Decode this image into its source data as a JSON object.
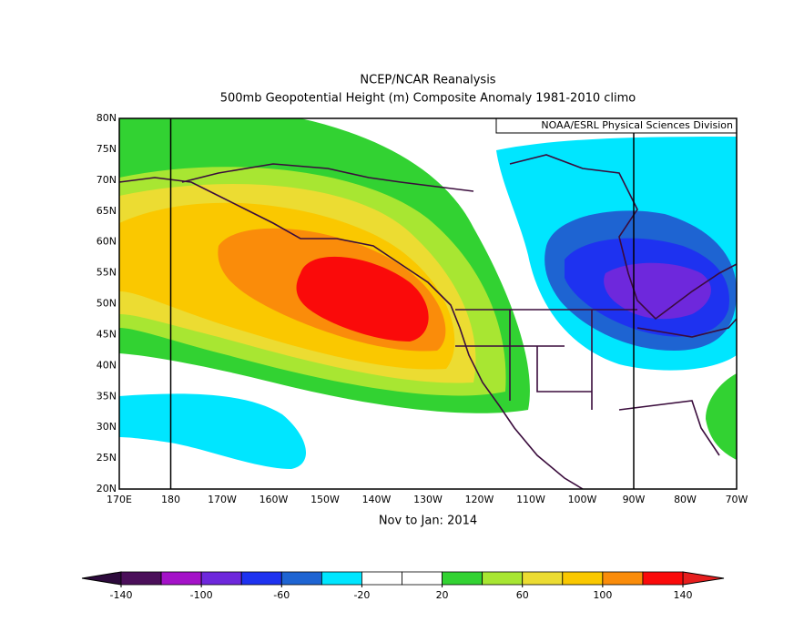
{
  "title": "NCEP/NCAR Reanalysis",
  "subtitle": "500mb Geopotential Height (m) Composite Anomaly 1981-2010 climo",
  "credit": "NOAA/ESRL Physical Sciences Division",
  "period": "Nov to Jan: 2014",
  "lat_labels": [
    "20N",
    "25N",
    "30N",
    "35N",
    "40N",
    "45N",
    "50N",
    "55N",
    "60N",
    "65N",
    "70N",
    "75N",
    "80N"
  ],
  "lon_labels": [
    "170E",
    "180",
    "170W",
    "160W",
    "150W",
    "140W",
    "130W",
    "120W",
    "110W",
    "100W",
    "90W",
    "80W",
    "70W"
  ],
  "colorbar": {
    "ticks": [
      -140,
      -100,
      -60,
      -20,
      20,
      60,
      100,
      140
    ],
    "colors": [
      "#4b0f5a",
      "#a412c8",
      "#6e28dc",
      "#1e32f0",
      "#1e64d2",
      "#00e6ff",
      "#ffffff",
      "#ffffff",
      "#32d232",
      "#a8e632",
      "#ecdc32",
      "#fac800",
      "#fa8c0a",
      "#fa0a0a"
    ],
    "under_color": "#2d0a3c",
    "over_color": "#e61e1e"
  }
}
